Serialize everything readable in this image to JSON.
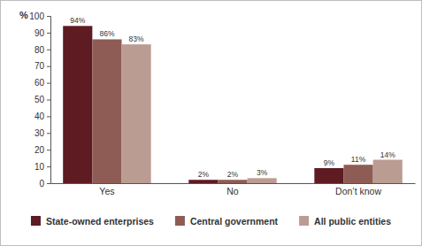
{
  "chart_data": {
    "type": "bar",
    "ylabel": "%",
    "categories": [
      "Yes",
      "No",
      "Don’t know"
    ],
    "series": [
      {
        "name": "State-owned enterprises",
        "color": "#5e1b22",
        "values": [
          94,
          2,
          9
        ],
        "value_labels": [
          "94%",
          "2%",
          "9%"
        ]
      },
      {
        "name": "Central government",
        "color": "#8e5c54",
        "values": [
          86,
          2,
          11
        ],
        "value_labels": [
          "86%",
          "2%",
          "11%"
        ]
      },
      {
        "name": "All public entities",
        "color": "#bb9c93",
        "values": [
          83,
          3,
          14
        ],
        "value_labels": [
          "83%",
          "3%",
          "14%"
        ]
      }
    ],
    "ylim": [
      0,
      100
    ],
    "yticks": [
      0,
      10,
      20,
      30,
      40,
      50,
      60,
      70,
      80,
      90,
      100
    ],
    "grid": false,
    "data_labels": true,
    "legend": "bottom"
  }
}
